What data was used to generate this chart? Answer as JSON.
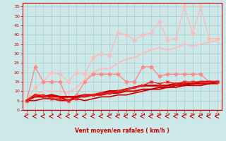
{
  "title": "",
  "xlabel": "Vent moyen/en rafales ( km/h )",
  "bg_color": "#cce8e8",
  "grid_color": "#aacccc",
  "xlim": [
    -0.5,
    23.5
  ],
  "ylim": [
    0,
    57
  ],
  "yticks": [
    0,
    5,
    10,
    15,
    20,
    25,
    30,
    35,
    40,
    45,
    50,
    55
  ],
  "xticks": [
    0,
    1,
    2,
    3,
    4,
    5,
    6,
    7,
    8,
    9,
    10,
    11,
    12,
    13,
    14,
    15,
    16,
    17,
    18,
    19,
    20,
    21,
    22,
    23
  ],
  "series": [
    {
      "x": [
        0,
        1,
        2,
        3,
        4,
        5,
        6,
        7,
        8,
        9,
        10,
        11,
        12,
        13,
        14,
        15,
        16,
        17,
        18,
        19,
        20,
        21,
        22,
        23
      ],
      "y": [
        5,
        12,
        15,
        20,
        19,
        15,
        20,
        19,
        28,
        30,
        29,
        41,
        40,
        37,
        40,
        41,
        47,
        37,
        38,
        55,
        41,
        55,
        38,
        38
      ],
      "color": "#ffbbbb",
      "lw": 1.0,
      "marker": "D",
      "ms": 2.5,
      "zorder": 2
    },
    {
      "x": [
        0,
        1,
        2,
        3,
        4,
        5,
        6,
        7,
        8,
        9,
        10,
        11,
        12,
        13,
        14,
        15,
        16,
        17,
        18,
        19,
        20,
        21,
        22,
        23
      ],
      "y": [
        5,
        8,
        10,
        10,
        10,
        9,
        12,
        16,
        20,
        22,
        22,
        25,
        27,
        28,
        30,
        32,
        33,
        32,
        33,
        35,
        34,
        35,
        36,
        37
      ],
      "color": "#ffbbbb",
      "lw": 1.3,
      "marker": null,
      "ms": 0,
      "zorder": 2
    },
    {
      "x": [
        0,
        1,
        2,
        3,
        4,
        5,
        6,
        7,
        8,
        9,
        10,
        11,
        12,
        13,
        14,
        15,
        16,
        17,
        18,
        19,
        20,
        21,
        22,
        23
      ],
      "y": [
        5,
        23,
        15,
        15,
        15,
        5,
        8,
        15,
        19,
        19,
        19,
        19,
        15,
        15,
        23,
        23,
        18,
        19,
        19,
        19,
        19,
        19,
        15,
        15
      ],
      "color": "#ff8888",
      "lw": 1.0,
      "marker": "D",
      "ms": 2.5,
      "zorder": 3
    },
    {
      "x": [
        0,
        1,
        2,
        3,
        4,
        5,
        6,
        7,
        8,
        9,
        10,
        11,
        12,
        13,
        14,
        15,
        16,
        17,
        18,
        19,
        20,
        21,
        22,
        23
      ],
      "y": [
        5,
        8,
        7,
        8,
        7,
        7,
        7,
        8,
        8,
        9,
        10,
        10,
        11,
        12,
        13,
        13,
        13,
        13,
        14,
        14,
        14,
        15,
        15,
        15
      ],
      "color": "#cc0000",
      "lw": 2.0,
      "marker": null,
      "ms": 0,
      "zorder": 5
    },
    {
      "x": [
        0,
        1,
        2,
        3,
        4,
        5,
        6,
        7,
        8,
        9,
        10,
        11,
        12,
        13,
        14,
        15,
        16,
        17,
        18,
        19,
        20,
        21,
        22,
        23
      ],
      "y": [
        5,
        7,
        7,
        7,
        7,
        5,
        7,
        7,
        8,
        8,
        9,
        9,
        10,
        10,
        11,
        11,
        12,
        12,
        13,
        13,
        14,
        14,
        14,
        15
      ],
      "color": "#cc0000",
      "lw": 1.5,
      "marker": null,
      "ms": 0,
      "zorder": 5
    },
    {
      "x": [
        0,
        1,
        2,
        3,
        4,
        5,
        6,
        7,
        8,
        9,
        10,
        11,
        12,
        13,
        14,
        15,
        16,
        17,
        18,
        19,
        20,
        21,
        22,
        23
      ],
      "y": [
        5,
        8,
        8,
        6,
        6,
        5,
        6,
        8,
        8,
        9,
        9,
        10,
        11,
        12,
        13,
        15,
        14,
        15,
        14,
        15,
        15,
        15,
        15,
        15
      ],
      "color": "#ee2222",
      "lw": 1.0,
      "marker": "x",
      "ms": 3.5,
      "zorder": 6
    },
    {
      "x": [
        0,
        1,
        2,
        3,
        4,
        5,
        6,
        7,
        8,
        9,
        10,
        11,
        12,
        13,
        14,
        15,
        16,
        17,
        18,
        19,
        20,
        21,
        22,
        23
      ],
      "y": [
        5,
        5,
        6,
        6,
        5,
        5,
        6,
        5,
        6,
        7,
        7,
        8,
        8,
        9,
        10,
        11,
        11,
        12,
        12,
        13,
        13,
        13,
        14,
        14
      ],
      "color": "#cc0000",
      "lw": 1.2,
      "marker": null,
      "ms": 0,
      "zorder": 5
    }
  ]
}
